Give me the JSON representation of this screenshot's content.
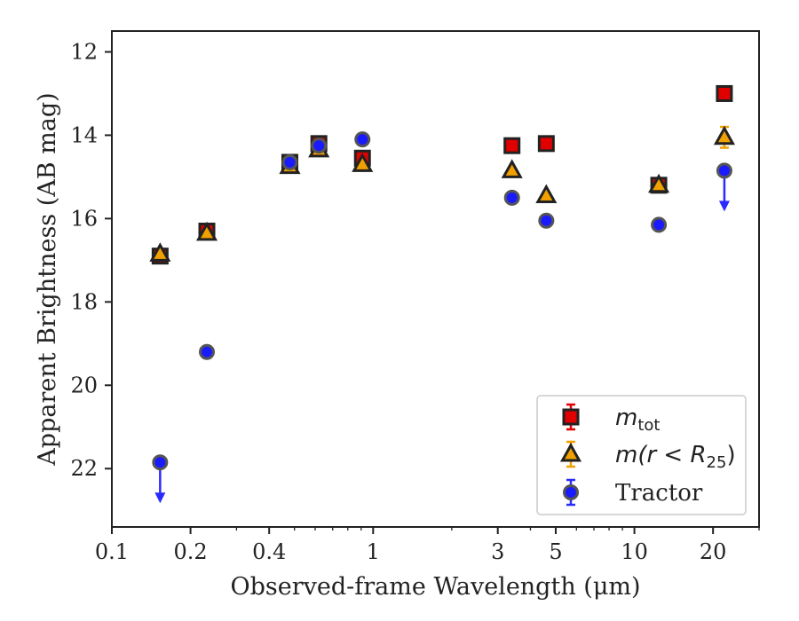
{
  "chart_data": {
    "type": "scatter",
    "xlabel": "Observed-frame Wavelength (μm)",
    "ylabel": "Apparent Brightness (AB mag)",
    "x_scale": "log",
    "xlim": [
      0.1,
      30
    ],
    "ylim": [
      23.4,
      11.5
    ],
    "y_inverted": true,
    "x_ticks": [
      {
        "value": 0.1,
        "label": "0.1"
      },
      {
        "value": 0.2,
        "label": "0.2"
      },
      {
        "value": 0.4,
        "label": "0.4"
      },
      {
        "value": 1,
        "label": "1"
      },
      {
        "value": 3,
        "label": "3"
      },
      {
        "value": 5,
        "label": "5"
      },
      {
        "value": 10,
        "label": "10"
      },
      {
        "value": 20,
        "label": "20"
      }
    ],
    "y_ticks": [
      {
        "value": 12,
        "label": "12"
      },
      {
        "value": 14,
        "label": "14"
      },
      {
        "value": 16,
        "label": "16"
      },
      {
        "value": 18,
        "label": "18"
      },
      {
        "value": 20,
        "label": "20"
      },
      {
        "value": 22,
        "label": "22"
      }
    ],
    "legend_position": "bottom-right",
    "series": [
      {
        "name": "m_tot",
        "legend_main": "m",
        "legend_sub": "tot",
        "marker": "square",
        "color": "#e00000",
        "error_color": "#e00000",
        "x": [
          0.153,
          0.231,
          0.48,
          0.62,
          0.91,
          3.4,
          4.6,
          12.4,
          22.1
        ],
        "y": [
          16.9,
          16.3,
          14.65,
          14.2,
          14.55,
          14.25,
          14.2,
          15.2,
          13.0
        ]
      },
      {
        "name": "m(r < R25)",
        "legend_main": "m(r < R",
        "legend_sub": "25",
        "legend_close": ")",
        "marker": "triangle",
        "color": "#f0a000",
        "error_color": "#f0a000",
        "x": [
          0.153,
          0.231,
          0.48,
          0.62,
          0.91,
          3.4,
          4.6,
          12.4,
          22.1
        ],
        "y": [
          16.85,
          16.35,
          14.75,
          14.35,
          14.7,
          14.85,
          15.45,
          15.2,
          14.05
        ],
        "yerr": [
          0,
          0,
          0,
          0,
          0,
          0,
          0,
          0,
          0.25
        ]
      },
      {
        "name": "Tractor",
        "legend_main": "Tractor",
        "marker": "circle",
        "color": "#1a1aff",
        "error_color": "#2a2aff",
        "x": [
          0.153,
          0.231,
          0.48,
          0.62,
          0.91,
          3.4,
          4.6,
          12.4,
          22.1
        ],
        "y": [
          21.85,
          19.2,
          14.65,
          14.25,
          14.1,
          15.5,
          16.05,
          16.15,
          14.85
        ],
        "upper_limit": [
          true,
          false,
          false,
          false,
          false,
          false,
          false,
          false,
          true
        ]
      }
    ]
  }
}
